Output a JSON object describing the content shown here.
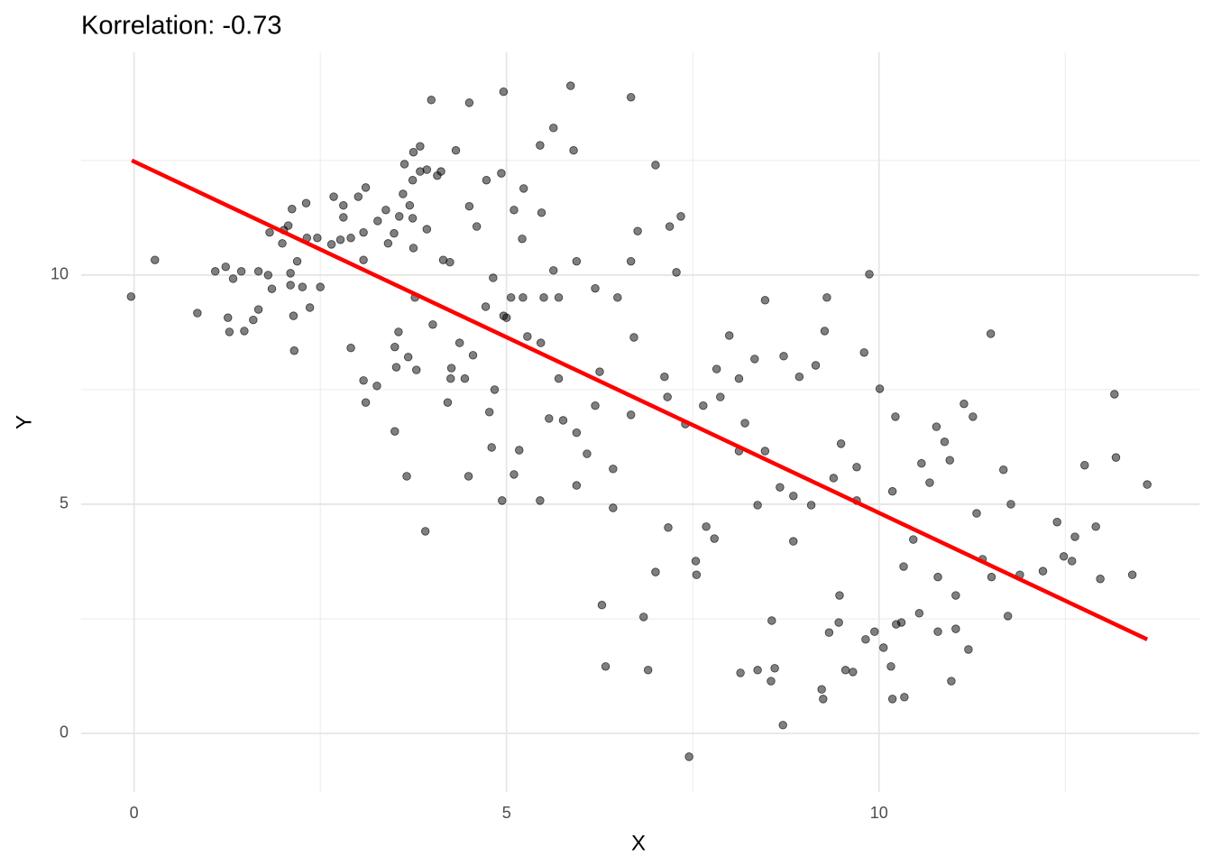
{
  "chart_data": {
    "type": "scatter",
    "title": "Korrelation:  -0.73",
    "x_label": "X",
    "y_label": "Y",
    "xlim": [
      -0.71,
      14.3
    ],
    "ylim": [
      -1.28,
      14.86
    ],
    "xticks": [
      0,
      5,
      10
    ],
    "yticks": [
      0,
      5,
      10
    ],
    "x_minor_grid": [
      2.5,
      7.5,
      12.5
    ],
    "y_minor_grid": [
      2.5,
      7.5,
      12.5
    ],
    "grid": true,
    "series": [
      {
        "color": "#000000",
        "opacity": 0.5,
        "x": [
          -0.04,
          0.28,
          0.85,
          1.09,
          1.23,
          1.26,
          1.28,
          1.33,
          1.44,
          1.48,
          1.6,
          1.67,
          1.67,
          1.8,
          1.82,
          1.85,
          1.99,
          2.01,
          2.07,
          2.1,
          2.1,
          2.12,
          2.14,
          2.15,
          2.19,
          2.26,
          2.31,
          2.32,
          2.36,
          2.46,
          2.5,
          2.65,
          2.68,
          2.77,
          2.81,
          2.81,
          2.91,
          2.91,
          3.01,
          3.08,
          3.08,
          3.11,
          3.08,
          3.11,
          3.26,
          3.27,
          3.38,
          3.41,
          3.49,
          3.5,
          3.5,
          3.52,
          3.56,
          3.61,
          3.55,
          3.63,
          3.66,
          3.68,
          3.7,
          3.74,
          3.74,
          3.75,
          3.75,
          3.79,
          3.84,
          3.84,
          3.91,
          3.93,
          3.93,
          3.99,
          4.07,
          4.12,
          4.15,
          4.21,
          4.24,
          4.32,
          4.26,
          4.37,
          4.44,
          4.5,
          4.5,
          4.49,
          4.55,
          4.6,
          4.73,
          4.77,
          4.8,
          4.82,
          4.84,
          4.93,
          4.94,
          4.96,
          5.0,
          5.06,
          5.1,
          5.1,
          5.17,
          5.21,
          5.23,
          5.28,
          5.45,
          5.45,
          5.47,
          5.5,
          5.57,
          5.63,
          5.63,
          5.76,
          5.86,
          5.9,
          5.94,
          6.08,
          6.25,
          6.28,
          6.33,
          6.43,
          6.67,
          6.71,
          6.76,
          6.84,
          6.9,
          7.0,
          7.0,
          7.12,
          7.17,
          7.19,
          7.28,
          7.34,
          7.45,
          7.54,
          7.55,
          7.68,
          7.79,
          7.82,
          7.99,
          8.14,
          8.2,
          8.33,
          8.37,
          8.47,
          8.55,
          8.56,
          8.6,
          8.71,
          8.72,
          8.93,
          9.15,
          9.23,
          9.25,
          9.27,
          9.3,
          9.33,
          9.47,
          9.49,
          9.55,
          9.65,
          9.7,
          9.8,
          9.87,
          10.01,
          9.82,
          10.06,
          10.16,
          10.18,
          10.23,
          10.34,
          10.22,
          10.33,
          10.46,
          10.57,
          10.68,
          10.77,
          10.88,
          10.95,
          10.97,
          11.03,
          11.14,
          11.26,
          11.31,
          11.5,
          11.2,
          11.67,
          11.77,
          11.73,
          11.89,
          12.2,
          12.39,
          12.48,
          12.59,
          12.63,
          12.76,
          12.91,
          12.97,
          13.16,
          13.18,
          13.4,
          13.6,
          8.37,
          8.67,
          8.85,
          9.09,
          9.39,
          9.7,
          10.18,
          10.79,
          11.03,
          11.39,
          11.51,
          10.54,
          10.79,
          10.3,
          9.94,
          9.46,
          8.85,
          8.12,
          7.64,
          7.4,
          7.16,
          6.67,
          6.43,
          6.19,
          5.94,
          5.7,
          5.46,
          5.22,
          4.96,
          4.72,
          4.25,
          4.01,
          3.77,
          5.94,
          6.19,
          5.7,
          6.49,
          6.67,
          8.47,
          8.12,
          7.87
        ],
        "values": [
          9.53,
          10.33,
          9.17,
          10.08,
          10.18,
          9.07,
          8.76,
          9.92,
          10.08,
          8.78,
          9.02,
          9.25,
          10.08,
          10.0,
          10.93,
          9.7,
          10.69,
          10.98,
          11.08,
          10.04,
          9.78,
          11.44,
          9.11,
          8.35,
          10.3,
          9.74,
          11.57,
          10.81,
          9.29,
          10.81,
          9.74,
          10.67,
          11.71,
          10.77,
          11.52,
          11.26,
          8.41,
          10.81,
          11.71,
          10.93,
          10.33,
          11.91,
          7.7,
          7.22,
          7.58,
          11.18,
          11.42,
          10.69,
          10.91,
          6.59,
          8.43,
          7.99,
          11.28,
          11.77,
          8.76,
          12.42,
          5.61,
          8.21,
          11.52,
          12.07,
          11.24,
          12.68,
          10.59,
          7.93,
          12.81,
          12.26,
          4.41,
          12.3,
          11.0,
          13.82,
          12.17,
          12.26,
          10.33,
          7.22,
          10.28,
          12.72,
          7.97,
          8.52,
          7.74,
          13.76,
          11.5,
          5.61,
          8.25,
          11.06,
          12.07,
          7.01,
          6.24,
          9.94,
          7.5,
          12.22,
          5.08,
          14.0,
          9.07,
          9.51,
          11.42,
          5.65,
          6.18,
          10.79,
          11.89,
          8.66,
          12.83,
          5.08,
          11.36,
          9.51,
          6.87,
          13.21,
          10.1,
          6.83,
          14.13,
          12.72,
          5.41,
          6.1,
          7.89,
          2.8,
          1.46,
          4.92,
          13.88,
          8.64,
          10.96,
          2.54,
          1.38,
          12.4,
          3.52,
          7.78,
          4.49,
          11.06,
          10.06,
          11.28,
          -0.51,
          3.76,
          3.46,
          4.51,
          4.25,
          7.95,
          8.68,
          1.32,
          6.77,
          8.17,
          1.38,
          9.45,
          1.14,
          2.46,
          1.42,
          0.18,
          8.23,
          7.78,
          8.03,
          0.96,
          0.75,
          8.78,
          9.51,
          2.2,
          3.01,
          6.32,
          1.38,
          1.34,
          5.81,
          8.31,
          10.02,
          7.52,
          2.05,
          1.87,
          1.46,
          0.75,
          2.38,
          0.79,
          6.91,
          3.64,
          4.23,
          5.89,
          5.47,
          6.69,
          6.36,
          5.96,
          1.14,
          2.28,
          7.19,
          6.91,
          4.8,
          8.72,
          1.83,
          5.75,
          5.0,
          2.56,
          3.46,
          3.54,
          4.61,
          3.86,
          3.76,
          4.29,
          5.85,
          4.51,
          3.37,
          7.4,
          6.02,
          3.46,
          5.43,
          4.98,
          5.37,
          5.18,
          4.98,
          5.57,
          5.08,
          5.28,
          3.41,
          3.01,
          3.8,
          3.41,
          2.62,
          2.22,
          2.42,
          2.22,
          2.42,
          4.19,
          6.16,
          7.15,
          6.75,
          7.34,
          6.95,
          5.77,
          7.15,
          6.56,
          7.74,
          8.52,
          9.51,
          9.11,
          9.31,
          7.74,
          8.92,
          9.51,
          10.3,
          9.71,
          9.51,
          9.51,
          10.3,
          6.16,
          7.74,
          7.34
        ]
      }
    ],
    "trendline": {
      "color": "#ff0000",
      "x": [
        -0.03,
        13.6
      ],
      "y": [
        12.5,
        2.05
      ]
    }
  }
}
